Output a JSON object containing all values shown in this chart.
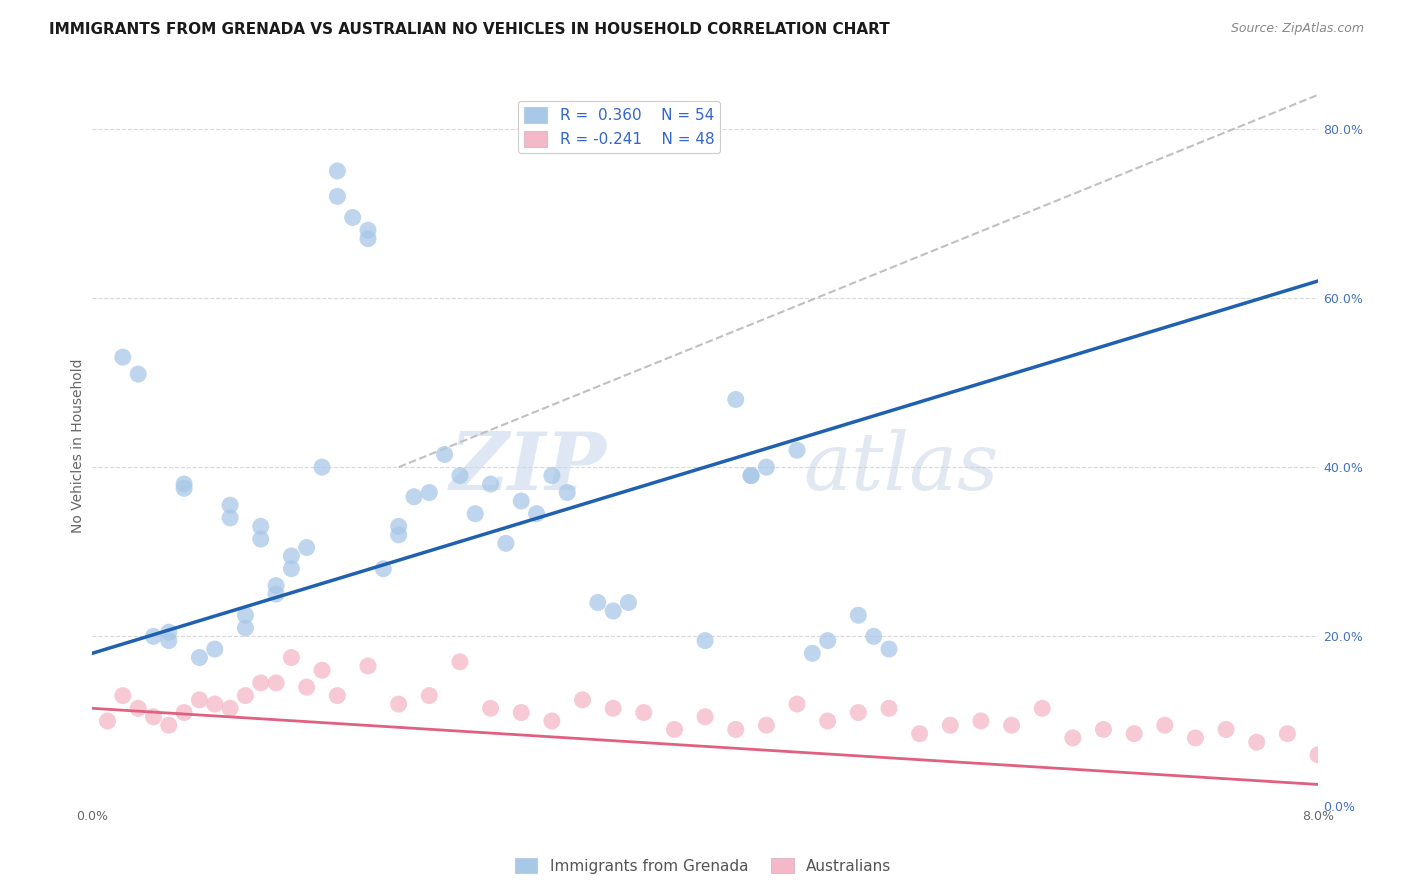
{
  "title": "IMMIGRANTS FROM GRENADA VS AUSTRALIAN NO VEHICLES IN HOUSEHOLD CORRELATION CHART",
  "source": "Source: ZipAtlas.com",
  "ylabel": "No Vehicles in Household",
  "legend_label1": "R =  0.360    N = 54",
  "legend_label2": "R = -0.241    N = 48",
  "legend_series1": "Immigrants from Grenada",
  "legend_series2": "Australians",
  "color_blue": "#a8c8e8",
  "color_pink": "#f4b8c8",
  "line_blue": "#2060b0",
  "line_pink": "#e06080",
  "line_dashed": "#c0c0c0",
  "background": "#ffffff",
  "grid_color": "#d8d8d8",
  "xlim": [
    0.0,
    0.08
  ],
  "ylim": [
    0.0,
    0.85
  ],
  "blue_scatter_x": [
    0.002,
    0.003,
    0.004,
    0.005,
    0.005,
    0.006,
    0.006,
    0.007,
    0.008,
    0.009,
    0.009,
    0.01,
    0.01,
    0.011,
    0.011,
    0.012,
    0.012,
    0.013,
    0.013,
    0.014,
    0.015,
    0.016,
    0.016,
    0.017,
    0.018,
    0.018,
    0.019,
    0.02,
    0.02,
    0.021,
    0.022,
    0.023,
    0.024,
    0.025,
    0.026,
    0.027,
    0.028,
    0.029,
    0.03,
    0.031,
    0.033,
    0.034,
    0.035,
    0.04,
    0.042,
    0.043,
    0.043,
    0.044,
    0.046,
    0.047,
    0.048,
    0.05,
    0.051,
    0.052
  ],
  "blue_scatter_y": [
    0.53,
    0.51,
    0.2,
    0.195,
    0.205,
    0.38,
    0.375,
    0.175,
    0.185,
    0.355,
    0.34,
    0.21,
    0.225,
    0.33,
    0.315,
    0.26,
    0.25,
    0.295,
    0.28,
    0.305,
    0.4,
    0.72,
    0.75,
    0.695,
    0.67,
    0.68,
    0.28,
    0.33,
    0.32,
    0.365,
    0.37,
    0.415,
    0.39,
    0.345,
    0.38,
    0.31,
    0.36,
    0.345,
    0.39,
    0.37,
    0.24,
    0.23,
    0.24,
    0.195,
    0.48,
    0.39,
    0.39,
    0.4,
    0.42,
    0.18,
    0.195,
    0.225,
    0.2,
    0.185
  ],
  "pink_scatter_x": [
    0.001,
    0.002,
    0.003,
    0.004,
    0.005,
    0.006,
    0.007,
    0.008,
    0.009,
    0.01,
    0.011,
    0.012,
    0.013,
    0.014,
    0.015,
    0.016,
    0.018,
    0.02,
    0.022,
    0.024,
    0.026,
    0.028,
    0.03,
    0.032,
    0.034,
    0.036,
    0.038,
    0.04,
    0.042,
    0.044,
    0.046,
    0.048,
    0.05,
    0.052,
    0.054,
    0.056,
    0.058,
    0.06,
    0.062,
    0.064,
    0.066,
    0.068,
    0.07,
    0.072,
    0.074,
    0.076,
    0.078,
    0.08
  ],
  "pink_scatter_y": [
    0.1,
    0.13,
    0.115,
    0.105,
    0.095,
    0.11,
    0.125,
    0.12,
    0.115,
    0.13,
    0.145,
    0.145,
    0.175,
    0.14,
    0.16,
    0.13,
    0.165,
    0.12,
    0.13,
    0.17,
    0.115,
    0.11,
    0.1,
    0.125,
    0.115,
    0.11,
    0.09,
    0.105,
    0.09,
    0.095,
    0.12,
    0.1,
    0.11,
    0.115,
    0.085,
    0.095,
    0.1,
    0.095,
    0.115,
    0.08,
    0.09,
    0.085,
    0.095,
    0.08,
    0.09,
    0.075,
    0.085,
    0.06
  ],
  "blue_line_x": [
    0.0,
    0.08
  ],
  "blue_line_y": [
    0.18,
    0.62
  ],
  "pink_line_x": [
    0.0,
    0.08
  ],
  "pink_line_y": [
    0.115,
    0.025
  ],
  "dash_line_x": [
    0.02,
    0.08
  ],
  "dash_line_y": [
    0.4,
    0.84
  ],
  "watermark1": "ZIP",
  "watermark2": "atlas",
  "title_fontsize": 11,
  "source_fontsize": 9,
  "axis_label_fontsize": 10,
  "tick_fontsize": 9,
  "legend_fontsize": 10
}
